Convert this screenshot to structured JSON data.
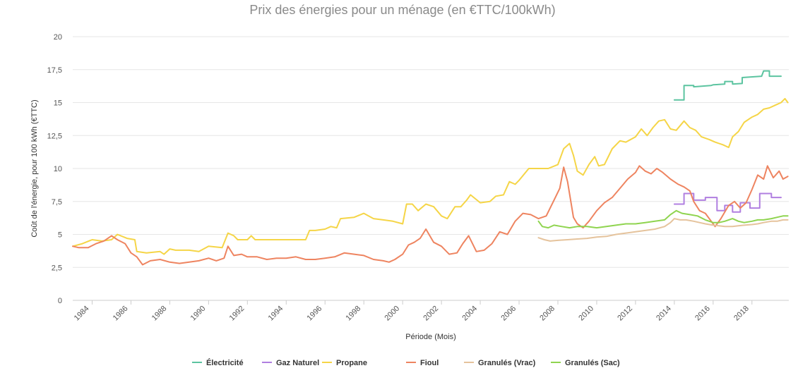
{
  "chart_data": {
    "type": "line",
    "title": "Prix des énergies pour un ménage (en €TTC/100kWh)",
    "xlabel": "Période (Mois)",
    "ylabel": "Coût de l'énergie, pour 100 kWh (€TTC)",
    "ylim": [
      0,
      20
    ],
    "xlim": [
      1983.0,
      2019.9
    ],
    "yticks": [
      "0",
      "2,5",
      "5",
      "7,5",
      "10",
      "12,5",
      "15",
      "17,5",
      "20"
    ],
    "xticks": [
      "1984",
      "1986",
      "1988",
      "1990",
      "1992",
      "1994",
      "1996",
      "1998",
      "2000",
      "2002",
      "2004",
      "2006",
      "2008",
      "2010",
      "2012",
      "2014",
      "2016",
      "2018"
    ],
    "grid": true,
    "legend_position": "bottom",
    "series": [
      {
        "name": "Électricité",
        "color": "#5cc4a0",
        "x": [
          2014.0,
          2014.5,
          2014.5,
          2015.0,
          2015.0,
          2015.9,
          2016.0,
          2016.6,
          2016.6,
          2017.0,
          2017.0,
          2017.5,
          2017.5,
          2018.5,
          2018.6,
          2018.9,
          2018.9,
          2019.5
        ],
        "y": [
          15.2,
          15.2,
          16.3,
          16.3,
          16.2,
          16.3,
          16.35,
          16.4,
          16.6,
          16.6,
          16.4,
          16.45,
          16.9,
          17.0,
          17.4,
          17.4,
          17.0,
          17.0
        ]
      },
      {
        "name": "Gaz Naturel",
        "color": "#b07fe0",
        "x": [
          2014.0,
          2014.5,
          2014.5,
          2015.0,
          2015.0,
          2015.6,
          2015.6,
          2016.2,
          2016.2,
          2016.6,
          2016.6,
          2017.0,
          2017.0,
          2017.4,
          2017.4,
          2017.9,
          2017.9,
          2018.4,
          2018.4,
          2019.0,
          2019.0,
          2019.5
        ],
        "y": [
          7.3,
          7.3,
          8.1,
          8.1,
          7.6,
          7.6,
          7.8,
          7.8,
          6.8,
          6.8,
          7.2,
          7.2,
          6.7,
          6.7,
          7.4,
          7.4,
          7.0,
          7.0,
          8.1,
          8.1,
          7.8,
          7.8
        ]
      },
      {
        "name": "Propane",
        "color": "#f5d547",
        "x": [
          1983.0,
          1983.5,
          1984.0,
          1984.5,
          1985.0,
          1985.3,
          1985.8,
          1986.2,
          1986.3,
          1986.8,
          1987.5,
          1987.7,
          1988.0,
          1988.3,
          1989.0,
          1989.5,
          1990.0,
          1990.7,
          1991.0,
          1991.3,
          1991.5,
          1992.0,
          1992.2,
          1992.4,
          1993.0,
          1993.5,
          1994.0,
          1994.5,
          1995.0,
          1995.2,
          1995.5,
          1996.0,
          1996.3,
          1996.6,
          1996.8,
          1997.5,
          1998.0,
          1998.5,
          1999.0,
          1999.5,
          2000.0,
          2000.2,
          2000.5,
          2000.8,
          2001.2,
          2001.6,
          2002.0,
          2002.3,
          2002.7,
          2003.0,
          2003.3,
          2003.5,
          2004.0,
          2004.5,
          2004.8,
          2005.2,
          2005.5,
          2005.8,
          2006.0,
          2006.5,
          2007.0,
          2007.5,
          2008.0,
          2008.3,
          2008.6,
          2008.8,
          2009.0,
          2009.3,
          2009.6,
          2009.9,
          2010.1,
          2010.4,
          2010.8,
          2011.2,
          2011.5,
          2012.0,
          2012.3,
          2012.6,
          2012.9,
          2013.2,
          2013.5,
          2013.8,
          2014.1,
          2014.5,
          2014.8,
          2015.1,
          2015.4,
          2015.8,
          2016.1,
          2016.5,
          2016.8,
          2017.0,
          2017.3,
          2017.6,
          2018.0,
          2018.3,
          2018.6,
          2018.9,
          2019.2,
          2019.5,
          2019.7,
          2019.85
        ],
        "y": [
          4.1,
          4.3,
          4.6,
          4.5,
          4.6,
          5.0,
          4.7,
          4.6,
          3.7,
          3.6,
          3.7,
          3.5,
          3.9,
          3.8,
          3.8,
          3.7,
          4.1,
          4.0,
          5.1,
          4.9,
          4.6,
          4.6,
          4.9,
          4.6,
          4.6,
          4.6,
          4.6,
          4.6,
          4.6,
          5.3,
          5.3,
          5.4,
          5.6,
          5.5,
          6.2,
          6.3,
          6.6,
          6.2,
          6.1,
          6.0,
          5.8,
          7.3,
          7.3,
          6.8,
          7.3,
          7.1,
          6.4,
          6.2,
          7.1,
          7.1,
          7.6,
          8.0,
          7.4,
          7.5,
          7.9,
          8.0,
          9.0,
          8.8,
          9.1,
          10.0,
          10.0,
          10.0,
          10.3,
          11.5,
          11.9,
          11.0,
          9.8,
          9.5,
          10.3,
          10.9,
          10.2,
          10.3,
          11.5,
          12.1,
          12.0,
          12.4,
          13.0,
          12.5,
          13.1,
          13.6,
          13.7,
          13.0,
          12.9,
          13.6,
          13.1,
          12.9,
          12.4,
          12.2,
          12.0,
          11.8,
          11.6,
          12.4,
          12.8,
          13.5,
          13.9,
          14.1,
          14.5,
          14.6,
          14.8,
          15.0,
          15.3,
          15.0
        ]
      },
      {
        "name": "Fioul",
        "color": "#ee8460",
        "x": [
          1983.0,
          1983.3,
          1983.8,
          1984.2,
          1984.6,
          1985.0,
          1985.3,
          1985.7,
          1986.0,
          1986.3,
          1986.6,
          1987.0,
          1987.5,
          1988.0,
          1988.5,
          1989.0,
          1989.5,
          1990.0,
          1990.4,
          1990.8,
          1991.0,
          1991.3,
          1991.7,
          1992.0,
          1992.5,
          1993.0,
          1993.5,
          1994.0,
          1994.5,
          1995.0,
          1995.5,
          1996.0,
          1996.5,
          1997.0,
          1997.5,
          1998.0,
          1998.5,
          1999.0,
          1999.3,
          1999.6,
          2000.0,
          2000.3,
          2000.6,
          2000.9,
          2001.2,
          2001.6,
          2002.0,
          2002.4,
          2002.8,
          2003.1,
          2003.4,
          2003.8,
          2004.2,
          2004.6,
          2005.0,
          2005.4,
          2005.8,
          2006.2,
          2006.6,
          2007.0,
          2007.4,
          2007.8,
          2008.1,
          2008.3,
          2008.5,
          2008.8,
          2009.0,
          2009.3,
          2009.6,
          2010.0,
          2010.4,
          2010.8,
          2011.2,
          2011.6,
          2012.0,
          2012.2,
          2012.5,
          2012.8,
          2013.1,
          2013.4,
          2013.8,
          2014.2,
          2014.5,
          2014.8,
          2015.0,
          2015.3,
          2015.6,
          2015.9,
          2016.1,
          2016.4,
          2016.8,
          2017.1,
          2017.4,
          2017.7,
          2018.0,
          2018.3,
          2018.6,
          2018.8,
          2019.1,
          2019.4,
          2019.6,
          2019.85
        ],
        "y": [
          4.1,
          4.0,
          4.0,
          4.3,
          4.5,
          4.9,
          4.6,
          4.3,
          3.6,
          3.3,
          2.7,
          3.0,
          3.1,
          2.9,
          2.8,
          2.9,
          3.0,
          3.2,
          3.0,
          3.2,
          4.1,
          3.4,
          3.5,
          3.3,
          3.3,
          3.1,
          3.2,
          3.2,
          3.3,
          3.1,
          3.1,
          3.2,
          3.3,
          3.6,
          3.5,
          3.4,
          3.1,
          3.0,
          2.9,
          3.1,
          3.5,
          4.2,
          4.4,
          4.7,
          5.4,
          4.4,
          4.1,
          3.5,
          3.6,
          4.3,
          4.9,
          3.7,
          3.8,
          4.3,
          5.2,
          5.0,
          6.0,
          6.6,
          6.5,
          6.2,
          6.4,
          7.6,
          8.5,
          10.1,
          9.0,
          6.3,
          5.8,
          5.5,
          6.0,
          6.8,
          7.4,
          7.8,
          8.5,
          9.2,
          9.7,
          10.2,
          9.8,
          9.6,
          10.0,
          9.7,
          9.2,
          8.8,
          8.6,
          8.3,
          7.5,
          6.8,
          6.6,
          6.0,
          5.6,
          6.2,
          7.2,
          7.5,
          7.0,
          7.4,
          8.4,
          9.5,
          9.2,
          10.2,
          9.3,
          9.8,
          9.2,
          9.4
        ]
      },
      {
        "name": "Granulés (Vrac)",
        "color": "#e5c39c",
        "x": [
          2007.0,
          2007.3,
          2007.6,
          2008.0,
          2008.5,
          2009.0,
          2009.5,
          2010.0,
          2010.5,
          2011.0,
          2011.5,
          2012.0,
          2012.5,
          2013.0,
          2013.5,
          2013.8,
          2014.0,
          2014.3,
          2014.6,
          2015.0,
          2015.3,
          2015.6,
          2016.0,
          2016.3,
          2016.6,
          2017.0,
          2017.3,
          2017.6,
          2018.0,
          2018.3,
          2018.6,
          2019.0,
          2019.3,
          2019.6,
          2019.85
        ],
        "y": [
          4.75,
          4.6,
          4.5,
          4.55,
          4.6,
          4.65,
          4.7,
          4.8,
          4.85,
          5.0,
          5.1,
          5.2,
          5.3,
          5.4,
          5.6,
          5.9,
          6.2,
          6.1,
          6.1,
          6.0,
          5.9,
          5.8,
          5.7,
          5.65,
          5.6,
          5.6,
          5.65,
          5.7,
          5.75,
          5.8,
          5.9,
          6.0,
          6.0,
          6.1,
          6.1
        ]
      },
      {
        "name": "Granulés (Sac)",
        "color": "#8fd44f",
        "x": [
          2007.0,
          2007.2,
          2007.5,
          2007.8,
          2008.2,
          2008.6,
          2009.0,
          2009.5,
          2010.0,
          2010.5,
          2011.0,
          2011.5,
          2012.0,
          2012.5,
          2013.0,
          2013.5,
          2013.8,
          2014.1,
          2014.4,
          2014.8,
          2015.2,
          2015.6,
          2016.0,
          2016.3,
          2016.6,
          2017.0,
          2017.3,
          2017.6,
          2018.0,
          2018.3,
          2018.6,
          2019.0,
          2019.3,
          2019.6,
          2019.85
        ],
        "y": [
          6.0,
          5.6,
          5.5,
          5.7,
          5.6,
          5.5,
          5.6,
          5.6,
          5.5,
          5.6,
          5.7,
          5.8,
          5.8,
          5.9,
          6.0,
          6.1,
          6.5,
          6.8,
          6.6,
          6.5,
          6.4,
          6.1,
          5.9,
          5.9,
          6.0,
          6.2,
          6.0,
          5.9,
          6.0,
          6.1,
          6.1,
          6.2,
          6.3,
          6.4,
          6.4
        ]
      }
    ]
  }
}
